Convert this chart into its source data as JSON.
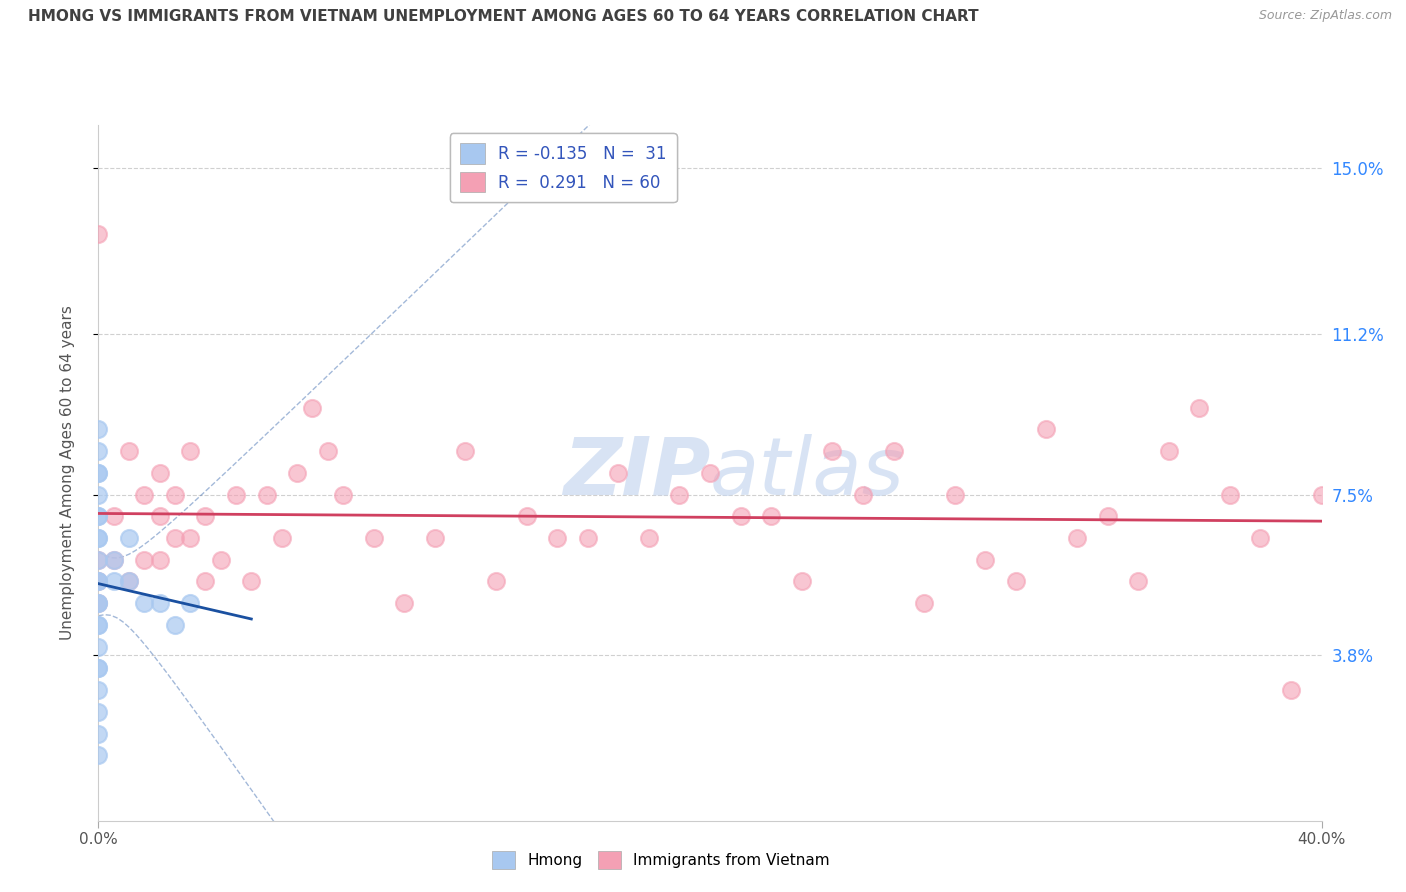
{
  "title": "HMONG VS IMMIGRANTS FROM VIETNAM UNEMPLOYMENT AMONG AGES 60 TO 64 YEARS CORRELATION CHART",
  "source": "Source: ZipAtlas.com",
  "ylabel": "Unemployment Among Ages 60 to 64 years",
  "xlim": [
    0.0,
    40.0
  ],
  "ylim": [
    0.0,
    16.0
  ],
  "right_yticks": [
    3.8,
    7.5,
    11.2,
    15.0
  ],
  "right_ytick_labels": [
    "3.8%",
    "7.5%",
    "11.2%",
    "15.0%"
  ],
  "hmong_color": "#a8c8f0",
  "vietnam_color": "#f4a0b4",
  "hmong_line_color": "#1a50a0",
  "vietnam_line_color": "#d04060",
  "hmong_R": -0.135,
  "hmong_N": 31,
  "vietnam_R": 0.291,
  "vietnam_N": 60,
  "background_color": "#ffffff",
  "grid_color": "#d0d0d0",
  "title_color": "#404040",
  "watermark_color": "#c8d8f0",
  "hmong_x": [
    0.0,
    0.0,
    0.0,
    0.0,
    0.0,
    0.0,
    0.0,
    0.0,
    0.0,
    0.0,
    0.0,
    0.0,
    0.0,
    0.0,
    0.0,
    0.0,
    0.0,
    0.0,
    0.0,
    0.0,
    0.0,
    0.0,
    0.5,
    0.5,
    1.0,
    1.0,
    1.5,
    2.0,
    2.5,
    3.0,
    0.0
  ],
  "hmong_y": [
    5.5,
    6.5,
    7.5,
    8.0,
    8.5,
    9.0,
    5.0,
    4.5,
    4.0,
    3.5,
    3.0,
    2.5,
    2.0,
    1.5,
    6.0,
    7.0,
    5.5,
    4.5,
    3.5,
    6.5,
    7.0,
    5.0,
    5.5,
    6.0,
    5.5,
    6.5,
    5.0,
    5.0,
    4.5,
    5.0,
    8.0
  ],
  "vietnam_x": [
    0.0,
    0.0,
    0.0,
    0.0,
    0.5,
    0.5,
    1.0,
    1.0,
    1.5,
    1.5,
    2.0,
    2.0,
    2.0,
    2.5,
    2.5,
    3.0,
    3.0,
    3.5,
    3.5,
    4.0,
    4.5,
    5.0,
    5.5,
    6.0,
    6.5,
    7.0,
    7.5,
    8.0,
    9.0,
    10.0,
    11.0,
    12.0,
    13.0,
    14.0,
    15.0,
    16.0,
    17.0,
    18.0,
    19.0,
    20.0,
    21.0,
    22.0,
    23.0,
    24.0,
    25.0,
    26.0,
    27.0,
    28.0,
    29.0,
    30.0,
    31.0,
    32.0,
    33.0,
    34.0,
    35.0,
    36.0,
    37.0,
    38.0,
    39.0,
    40.0
  ],
  "vietnam_y": [
    5.0,
    5.5,
    6.0,
    13.5,
    6.0,
    7.0,
    5.5,
    8.5,
    6.0,
    7.5,
    6.0,
    7.0,
    8.0,
    6.5,
    7.5,
    6.5,
    8.5,
    5.5,
    7.0,
    6.0,
    7.5,
    5.5,
    7.5,
    6.5,
    8.0,
    9.5,
    8.5,
    7.5,
    6.5,
    5.0,
    6.5,
    8.5,
    5.5,
    7.0,
    6.5,
    6.5,
    8.0,
    6.5,
    7.5,
    8.0,
    7.0,
    7.0,
    5.5,
    8.5,
    7.5,
    8.5,
    5.0,
    7.5,
    6.0,
    5.5,
    9.0,
    6.5,
    7.0,
    5.5,
    8.5,
    9.5,
    7.5,
    6.5,
    3.0,
    7.5
  ]
}
